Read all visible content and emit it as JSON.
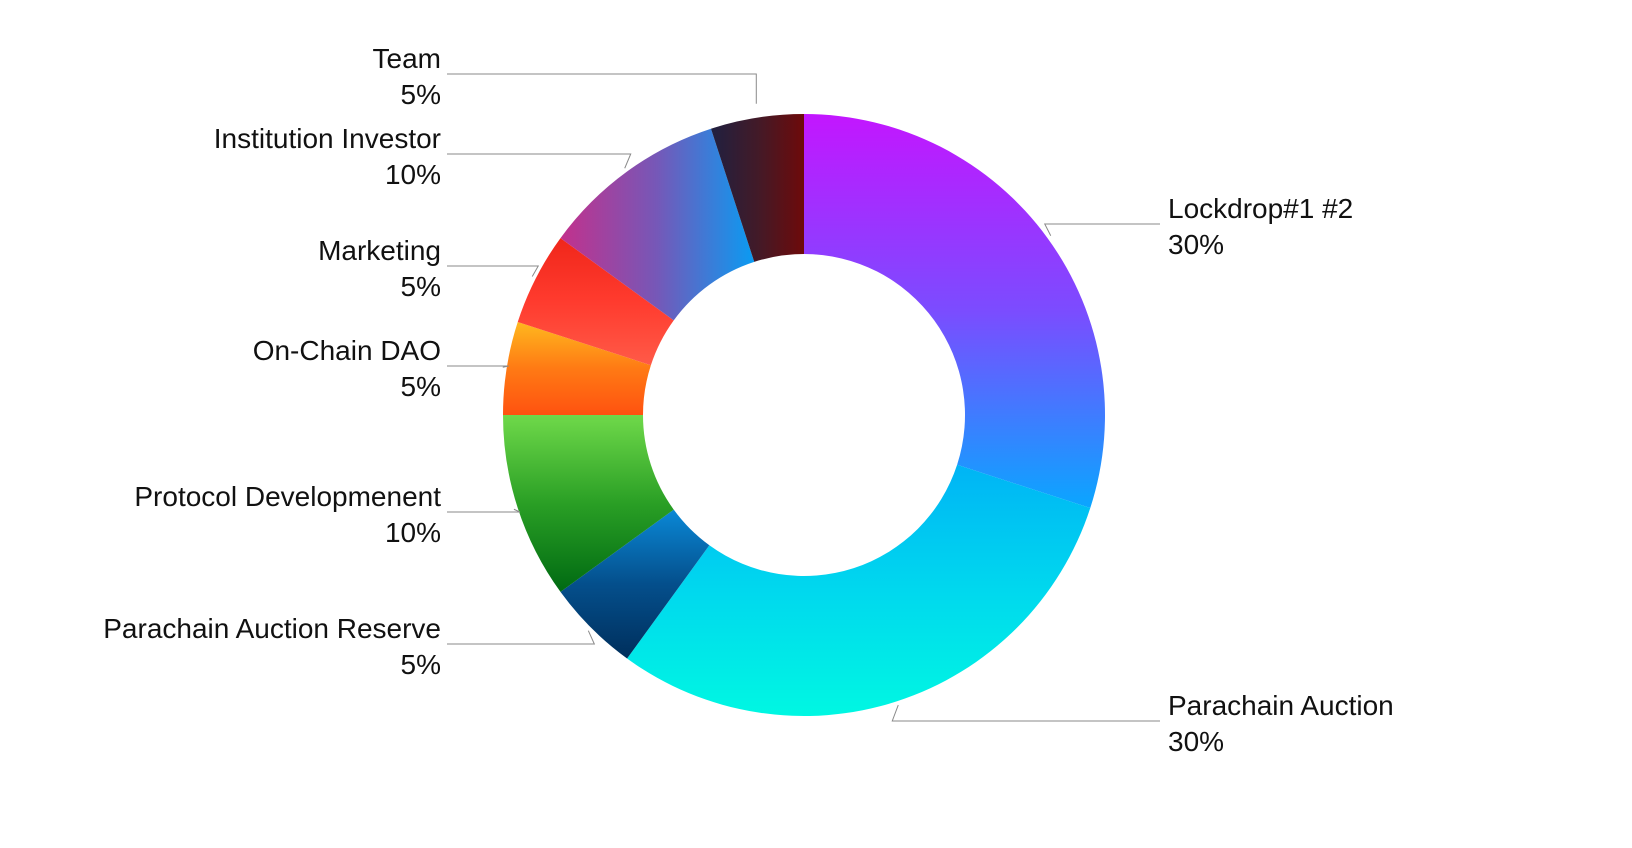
{
  "chart_data": {
    "type": "pie",
    "donut": true,
    "title": "",
    "legend": "none",
    "slices": [
      {
        "label": "Lockdrop#1 #2",
        "value": 30,
        "value_label": "30%",
        "colors": [
          "#c316ff",
          "#7b4cff",
          "#0aa6ff"
        ]
      },
      {
        "label": "Parachain Auction",
        "value": 30,
        "value_label": "30%",
        "colors": [
          "#00b4f5",
          "#00d8ee",
          "#00f7e2"
        ]
      },
      {
        "label": "Parachain Auction Reserve",
        "value": 5,
        "value_label": "5%",
        "colors": [
          "#0a88d6",
          "#044f8c",
          "#002f5c"
        ]
      },
      {
        "label": "Protocol Developmenent",
        "value": 10,
        "value_label": "10%",
        "colors": [
          "#6fd94a",
          "#2a9f25",
          "#006a12"
        ]
      },
      {
        "label": "On-Chain DAO",
        "value": 5,
        "value_label": "5%",
        "colors": [
          "#ffb81e",
          "#ff7a14",
          "#ff5210"
        ]
      },
      {
        "label": "Marketing",
        "value": 5,
        "value_label": "5%",
        "colors": [
          "#f0261a",
          "#ff3b2e",
          "#ff5a48"
        ]
      },
      {
        "label": "Institution Investor",
        "value": 10,
        "value_label": "10%",
        "colors": [
          "#c2318c",
          "#7558b8",
          "#0a9bf2"
        ]
      },
      {
        "label": "Team",
        "value": 5,
        "value_label": "5%",
        "colors": [
          "#202040",
          "#421a28",
          "#6e0a0a"
        ]
      }
    ]
  }
}
